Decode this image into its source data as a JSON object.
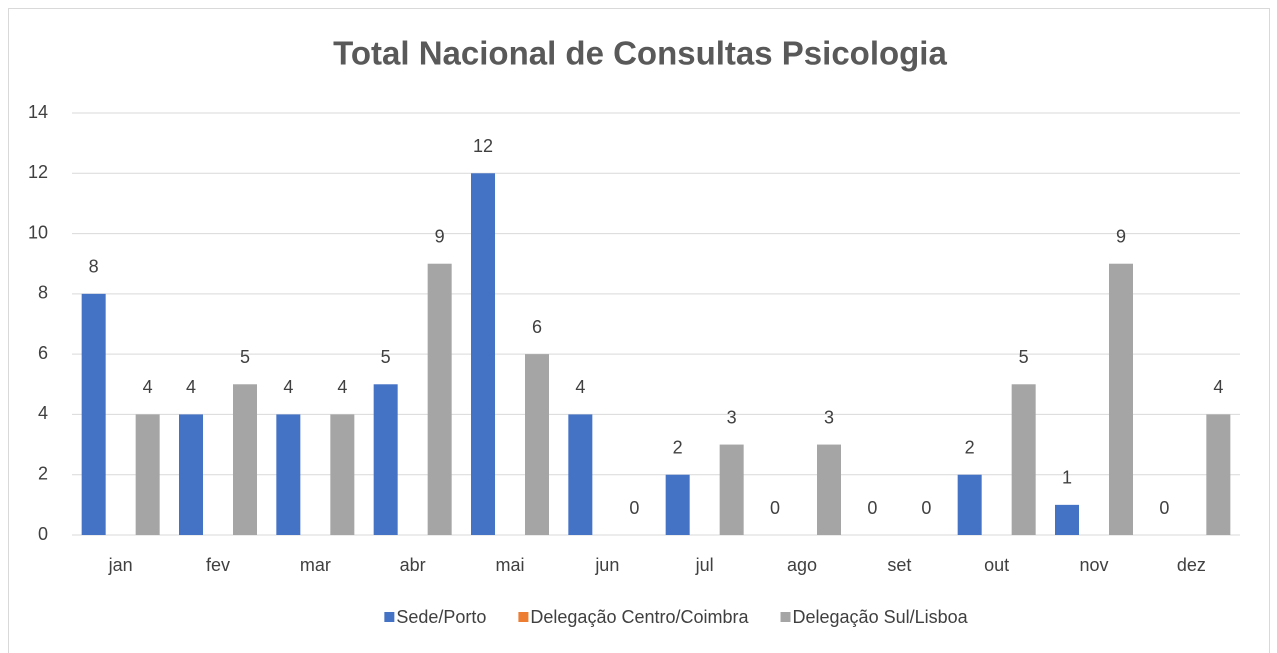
{
  "chart_data": {
    "type": "bar",
    "title": "Total Nacional de Consultas Psicologia",
    "categories": [
      "jan",
      "fev",
      "mar",
      "abr",
      "mai",
      "jun",
      "jul",
      "ago",
      "set",
      "out",
      "nov",
      "dez"
    ],
    "series": [
      {
        "name": "Sede/Porto",
        "color": "#4472c4",
        "values": [
          8,
          4,
          4,
          5,
          12,
          4,
          2,
          0,
          0,
          2,
          1,
          0
        ]
      },
      {
        "name": "Delegação Centro/Coimbra",
        "color": "#ed7d31",
        "values": [
          null,
          null,
          null,
          null,
          null,
          null,
          null,
          null,
          null,
          null,
          null,
          null
        ]
      },
      {
        "name": "Delegação Sul/Lisboa",
        "color": "#a5a5a5",
        "values": [
          4,
          5,
          4,
          9,
          6,
          0,
          3,
          3,
          0,
          5,
          9,
          4
        ]
      }
    ],
    "ylim": [
      0,
      14
    ],
    "yticks": [
      0,
      2,
      4,
      6,
      8,
      10,
      12,
      14
    ],
    "grid": true,
    "legend": "bottom"
  }
}
